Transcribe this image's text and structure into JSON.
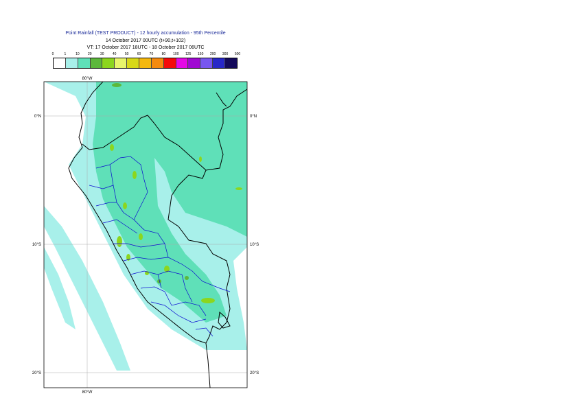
{
  "title": {
    "line1": "Point Rainfall (TEST PRODUCT) - 12 hourly accumulation - 95th Percentile",
    "line2": "14 October 2017 00UTC (t+90,t+102)",
    "line3": "VT: 17 October 2017 18UTC - 18 October 2017 06UTC"
  },
  "legend": {
    "ticks": [
      "0",
      "1",
      "10",
      "20",
      "30",
      "40",
      "50",
      "60",
      "70",
      "80",
      "100",
      "125",
      "150",
      "200",
      "300",
      "500"
    ],
    "colors": [
      "#ffffff",
      "#a8f0ea",
      "#5fe0b8",
      "#5cb83c",
      "#8cd61e",
      "#e8f56b",
      "#d8d818",
      "#f5b80e",
      "#f58a0e",
      "#f50a0a",
      "#e60ae6",
      "#a00ad2",
      "#7856f0",
      "#2828c8",
      "#140a5a"
    ]
  },
  "axes": {
    "top_lon": "80°W",
    "bottom_lon": "80°W",
    "lat_left": [
      "0°N",
      "10°S",
      "20°S"
    ],
    "lat_right": [
      "0°N",
      "10°S",
      "20°S"
    ]
  }
}
